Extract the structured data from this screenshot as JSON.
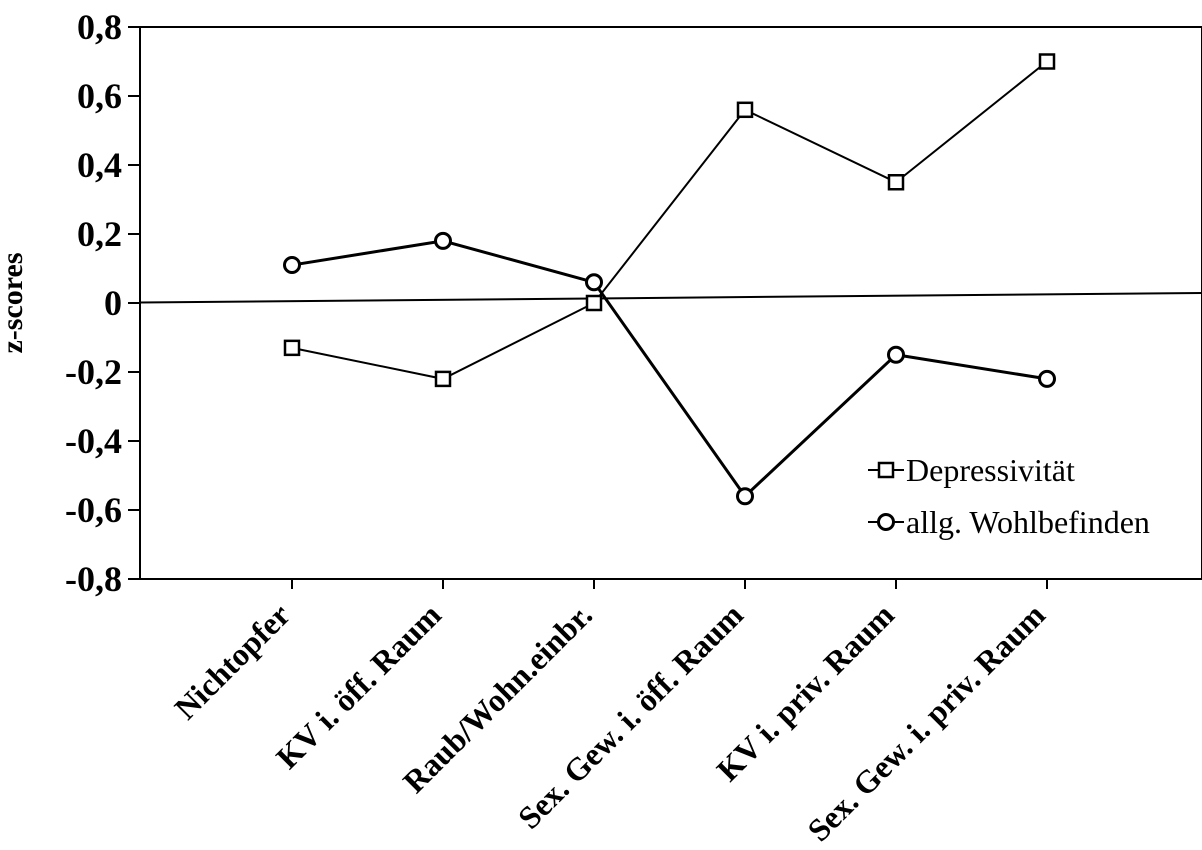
{
  "chart_data": {
    "type": "line",
    "title": "",
    "xlabel": "",
    "ylabel": "z-scores",
    "ylim": [
      -0.8,
      0.8
    ],
    "yticks": [
      "0,8",
      "0,6",
      "0,4",
      "0,2",
      "0",
      "-0,2",
      "-0,4",
      "-0,6",
      "-0,8"
    ],
    "ytick_values": [
      0.8,
      0.6,
      0.4,
      0.2,
      0,
      -0.2,
      -0.4,
      -0.6,
      -0.8
    ],
    "categories": [
      "Nichtopfer",
      "KV i. öff. Raum",
      "Raub/Wohn.einbr.",
      "Sex. Gew. i. öff. Raum",
      "KV i. priv. Raum",
      "Sex. Gew. i. priv. Raum"
    ],
    "series": [
      {
        "name": "Depressivität",
        "marker": "square",
        "values": [
          -0.13,
          -0.22,
          0.0,
          0.56,
          0.35,
          0.7
        ]
      },
      {
        "name": "allg. Wohlbefinden",
        "marker": "circle",
        "values": [
          0.11,
          0.18,
          0.06,
          -0.56,
          -0.15,
          -0.22
        ]
      }
    ],
    "legend_position": "bottom-right",
    "grid": false
  }
}
